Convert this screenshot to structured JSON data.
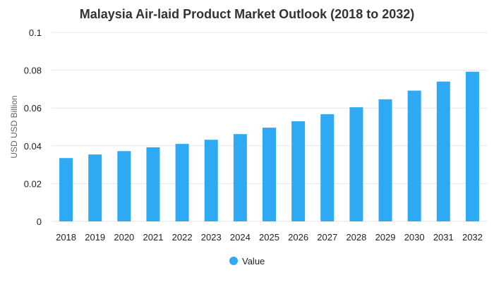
{
  "chart_data": {
    "type": "bar",
    "title": "Malaysia Air-laid Product Market Outlook (2018 to 2032)",
    "xlabel": "",
    "ylabel": "USD USD Billion",
    "categories": [
      "2018",
      "2019",
      "2020",
      "2021",
      "2022",
      "2023",
      "2024",
      "2025",
      "2026",
      "2027",
      "2028",
      "2029",
      "2030",
      "2031",
      "2032"
    ],
    "series": [
      {
        "name": "Value",
        "color": "#2eaaf5",
        "values": [
          0.0335,
          0.0354,
          0.0372,
          0.0392,
          0.041,
          0.0432,
          0.0462,
          0.0496,
          0.053,
          0.0567,
          0.0604,
          0.0646,
          0.0692,
          0.074,
          0.0792
        ]
      }
    ],
    "ylim": [
      0,
      0.1
    ],
    "yticks": [
      "0",
      "0.02",
      "0.04",
      "0.06",
      "0.08",
      "0.1"
    ],
    "grid": true,
    "legend_position": "bottom-center",
    "grid_color": "#e6e6e6"
  }
}
